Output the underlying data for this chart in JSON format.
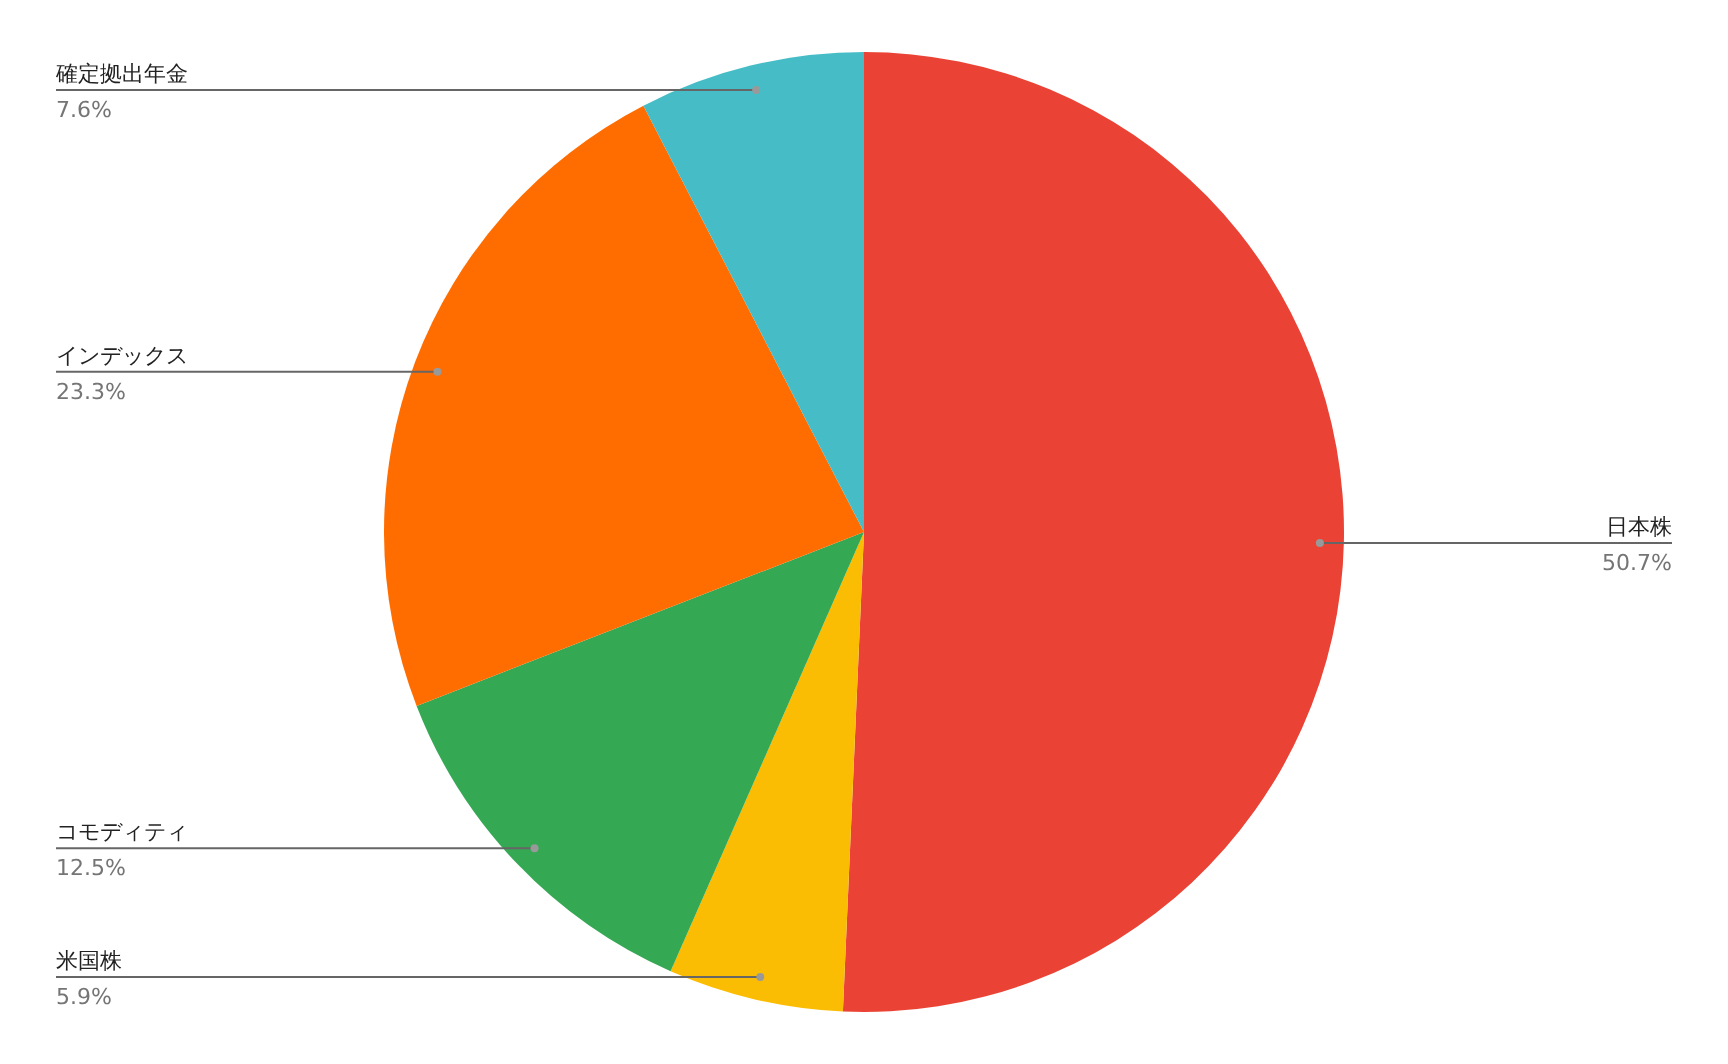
{
  "chart_data": {
    "type": "pie",
    "categories": [
      "日本株",
      "米国株",
      "コモディティ",
      "インデックス",
      "確定拠出年金"
    ],
    "values": [
      50.7,
      5.9,
      12.5,
      23.3,
      7.6
    ],
    "value_labels": [
      "50.7%",
      "5.9%",
      "12.5%",
      "23.3%",
      "7.6%"
    ],
    "colors": [
      "#ea4335",
      "#fbbc04",
      "#34a853",
      "#ff6d01",
      "#46bdc6"
    ],
    "legend": false
  }
}
